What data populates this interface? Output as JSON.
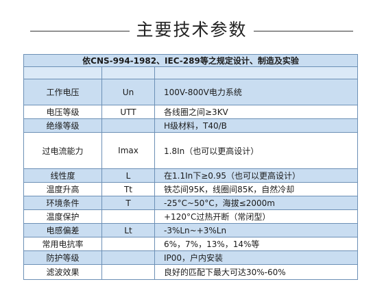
{
  "heading": {
    "title": "主要技术参数"
  },
  "table": {
    "header": "依CNS-994-1982、IEC-289等之规定设计、制造及实验",
    "rows": [
      {
        "name": "工作电压",
        "symbol": "Un",
        "value": "100V-800V电力系统",
        "shade": true,
        "height": 37
      },
      {
        "name": "电压等级",
        "symbol": "UTT",
        "value": "各线圈之间≥3KV",
        "shade": false,
        "height": 19
      },
      {
        "name": "绝缘等级",
        "symbol": "",
        "value": "H级材料，T40/B",
        "shade": true,
        "height": 19
      },
      {
        "name": "过电流能力",
        "symbol": "Imax",
        "value": "1.8In（也可以更高设计）",
        "shade": false,
        "height": 52
      },
      {
        "name": "线性度",
        "symbol": "L",
        "value": "在1.1In下≥0.95（也可以更高设计）",
        "shade": true,
        "height": 19
      },
      {
        "name": "温度升高",
        "symbol": "Tt",
        "value": "铁芯间95K，线圈间85K，自然冷却",
        "shade": false,
        "height": 19
      },
      {
        "name": "环境条件",
        "symbol": "T",
        "value": "-25°C~50°C，海拔≤2000m",
        "shade": true,
        "height": 19
      },
      {
        "name": "温度保护",
        "symbol": "",
        "value": "+120°C过热开断（常闭型）",
        "shade": false,
        "height": 19
      },
      {
        "name": "电感偏差",
        "symbol": "Lt",
        "value": "-3%Ln~+3%Ln",
        "shade": true,
        "height": 19
      },
      {
        "name": "常用电抗率",
        "symbol": "",
        "value": "6%，7%，13%，14%等",
        "shade": false,
        "height": 19
      },
      {
        "name": "防护等级",
        "symbol": "",
        "value": "IP00，户内安装",
        "shade": true,
        "height": 19
      },
      {
        "name": "滤波效果",
        "symbol": "",
        "value": "良好的匹配下最大可达30%-60%",
        "shade": false,
        "height": 21
      }
    ]
  }
}
